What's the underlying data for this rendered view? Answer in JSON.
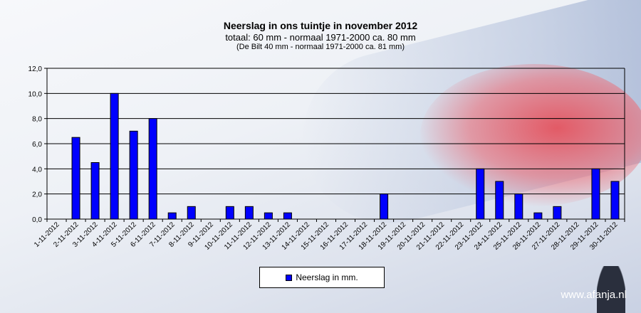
{
  "chart_data": {
    "type": "bar",
    "title": "Neerslag  in  ons  tuintje  in  november 2012",
    "subtitle": "totaal:  60  mm   - normaal  1971-2000  ca.  80  mm",
    "subtitle2": "(De Bilt 40 mm - normaal 1971-2000 ca. 81 mm)",
    "xlabel": "",
    "ylabel": "",
    "ylim": [
      0,
      12
    ],
    "yticks": [
      "0,0",
      "2,0",
      "4,0",
      "6,0",
      "8,0",
      "10,0",
      "12,0"
    ],
    "grid": true,
    "legend": "bottom-center",
    "categories": [
      "1-11-2012",
      "2-11-2012",
      "3-11-2012",
      "4-11-2012",
      "5-11-2012",
      "6-11-2012",
      "7-11-2012",
      "8-11-2012",
      "9-11-2012",
      "10-11-2012",
      "11-11-2012",
      "12-11-2012",
      "13-11-2012",
      "14-11-2012",
      "15-11-2012",
      "16-11-2012",
      "17-11-2012",
      "18-11-2012",
      "19-11-2012",
      "20-11-2012",
      "21-11-2012",
      "22-11-2012",
      "23-11-2012",
      "24-11-2012",
      "25-11-2012",
      "26-11-2012",
      "27-11-2012",
      "28-11-2012",
      "29-11-2012",
      "30-11-2012"
    ],
    "series": [
      {
        "name": "Neerslag in mm.",
        "color": "#0000ff",
        "values": [
          0,
          6.5,
          4.5,
          10,
          7,
          8,
          0.5,
          1,
          0,
          1,
          1,
          0.5,
          0.5,
          0,
          0,
          0,
          0,
          2,
          0,
          0,
          0,
          0,
          4,
          3,
          2,
          0.5,
          1,
          0,
          4,
          3
        ]
      }
    ]
  },
  "watermark": "www.afanja.nl"
}
